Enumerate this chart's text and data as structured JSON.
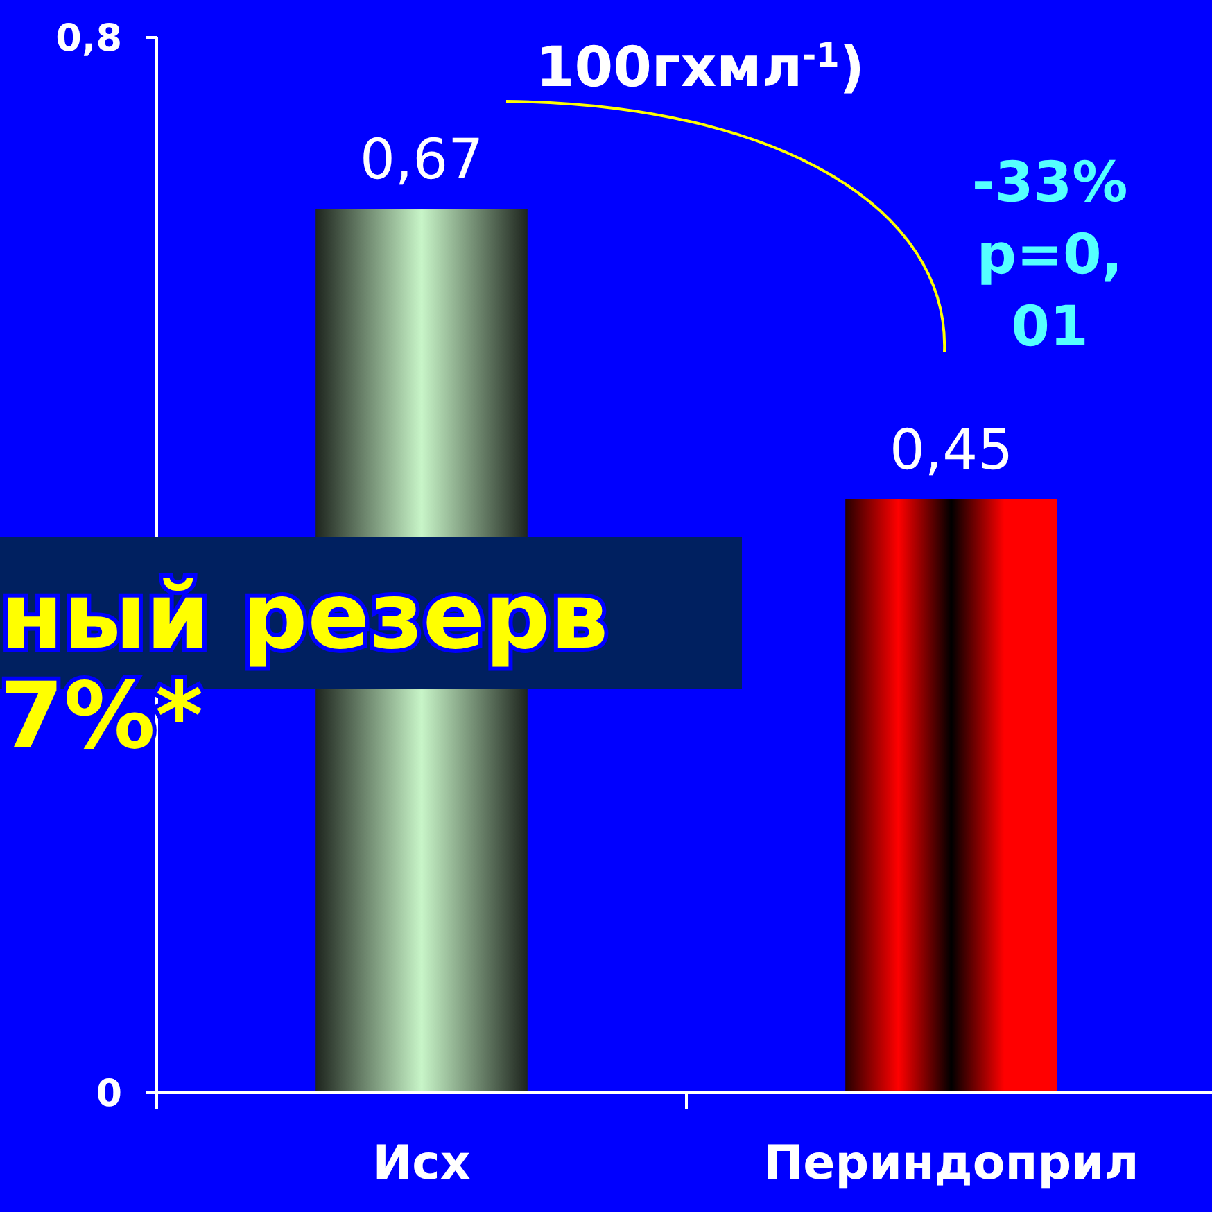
{
  "chart_data": {
    "type": "bar",
    "title": "100гхмл$^{-1}$)",
    "categories": [
      "Исх",
      "Периндоприл"
    ],
    "values": [
      0.67,
      0.45
    ],
    "colors": [
      "#c8f5c8",
      "#ff0000"
    ],
    "ylim": [
      0,
      0.8
    ],
    "yticks": [
      {
        "value": 0,
        "label": "0"
      },
      {
        "value": 0.8,
        "label": "0,8"
      }
    ],
    "value_labels": [
      "0,67",
      "0,45"
    ],
    "grid": false,
    "annotations": [
      "-33%\np=0,\n01",
      "ный резерв\n7%*"
    ]
  }
}
